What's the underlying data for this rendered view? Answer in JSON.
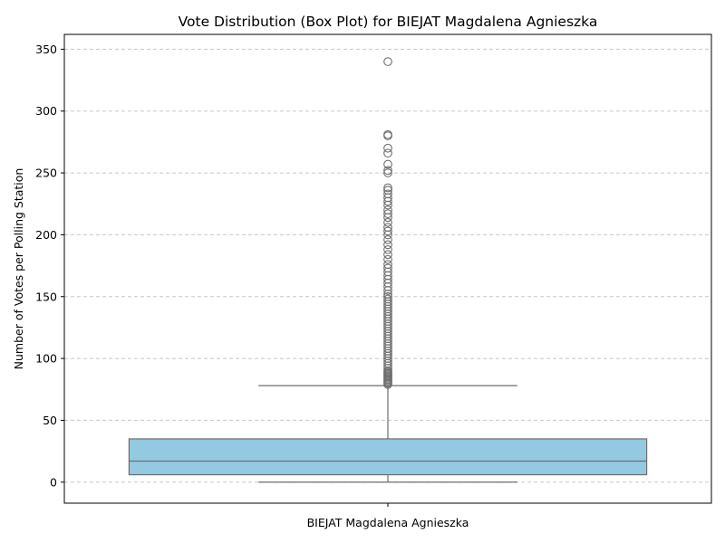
{
  "chart_data": {
    "type": "box",
    "title": "Vote Distribution (Box Plot) for BIEJAT Magdalena Agnieszka",
    "xlabel": "",
    "ylabel": "Number of Votes per Polling Station",
    "categories": [
      "BIEJAT Magdalena Agnieszka"
    ],
    "ylim": [
      -17,
      362
    ],
    "yticks": [
      0,
      50,
      100,
      150,
      200,
      250,
      300,
      350
    ],
    "grid": "y-dashed",
    "legend": "none",
    "box_color": "#93c9e1",
    "line_color": "#6e6e6e",
    "series": [
      {
        "category": "BIEJAT Magdalena Agnieszka",
        "min": 0,
        "q1": 6,
        "median": 17,
        "q3": 35,
        "whisker_high": 78,
        "outliers": [
          79,
          80,
          81,
          82,
          83,
          84,
          85,
          86,
          87,
          88,
          89,
          90,
          92,
          94,
          96,
          98,
          100,
          102,
          104,
          106,
          108,
          110,
          112,
          114,
          116,
          118,
          120,
          122,
          124,
          126,
          128,
          130,
          132,
          134,
          136,
          138,
          140,
          142,
          144,
          146,
          148,
          150,
          152,
          155,
          158,
          161,
          164,
          167,
          170,
          173,
          176,
          180,
          184,
          188,
          192,
          196,
          200,
          203,
          206,
          210,
          214,
          217,
          220,
          224,
          227,
          230,
          233,
          236,
          238,
          250,
          252,
          257,
          266,
          270,
          280,
          281,
          340
        ]
      }
    ]
  }
}
